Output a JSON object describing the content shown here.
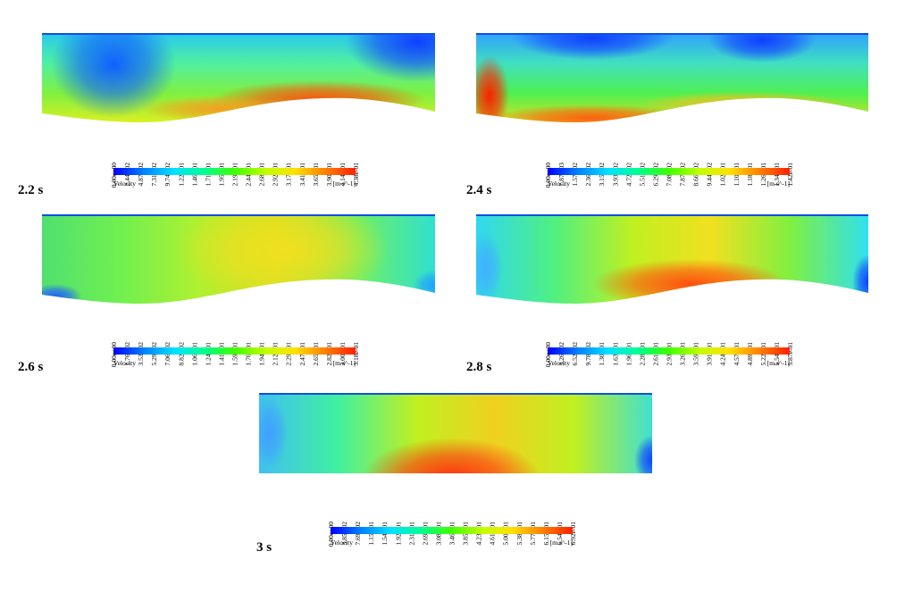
{
  "panels": [
    {
      "time": "2.2  s",
      "legend": {
        "title": "Velocity",
        "unit": "[m s^-1]",
        "ticks": [
          "0.00e+00",
          "2.44e-02",
          "4.87e-02",
          "7.31e-02",
          "9.74e-02",
          "1.22e-01",
          "1.46e-01",
          "1.71e-01",
          "1.95e-01",
          "2.19e-01",
          "2.44e-01",
          "2.68e-01",
          "2.92e-01",
          "3.17e-01",
          "3.41e-01",
          "3.65e-01",
          "3.90e-01",
          "4.14e-01",
          "4.38e-01"
        ]
      }
    },
    {
      "time": "2.4  s",
      "legend": {
        "title": "Velocity",
        "unit": "[m s^-1]",
        "ticks": [
          "0.00e+00",
          "7.87e-03",
          "1.57e-02",
          "2.36e-02",
          "3.15e-02",
          "3.93e-02",
          "4.72e-02",
          "5.51e-02",
          "6.29e-02",
          "7.08e-02",
          "7.87e-02",
          "8.66e-02",
          "9.44e-02",
          "1.02e-01",
          "1.10e-01",
          "1.18e-01",
          "1.26e-01",
          "1.34e-01",
          "1.42e-01"
        ]
      }
    },
    {
      "time": "2.6  s",
      "legend": {
        "title": "Velocity",
        "unit": "[m s^-1]",
        "ticks": [
          "0.00e+00",
          "1.76e-02",
          "3.53e-02",
          "5.29e-02",
          "7.06e-02",
          "8.82e-02",
          "1.06e-01",
          "1.24e-01",
          "1.41e-01",
          "1.59e-01",
          "1.76e-01",
          "1.94e-01",
          "2.12e-01",
          "2.29e-01",
          "2.47e-01",
          "2.65e-01",
          "2.82e-01",
          "3.00e-01",
          "3.18e-01"
        ]
      }
    },
    {
      "time": "2.8  s",
      "legend": {
        "title": "Velocity",
        "unit": "[m s^-1]",
        "ticks": [
          "0.00e+00",
          "3.26e-02",
          "6.52e-02",
          "9.78e-02",
          "1.30e-01",
          "1.63e-01",
          "1.96e-01",
          "2.28e-01",
          "2.61e-01",
          "2.93e-01",
          "3.26e-01",
          "3.59e-01",
          "3.91e-01",
          "4.24e-01",
          "4.57e-01",
          "4.89e-01",
          "5.22e-01",
          "5.54e-01",
          "5.87e-01"
        ]
      }
    },
    {
      "time": "3  s",
      "legend": {
        "title": "Velocity",
        "unit": "[m s^-1]",
        "ticks": [
          "0.00e+00",
          "3.85e-02",
          "7.69e-02",
          "1.15e-01",
          "1.54e-01",
          "1.92e-01",
          "2.31e-01",
          "2.69e-01",
          "3.08e-01",
          "3.46e-01",
          "3.85e-01",
          "4.23e-01",
          "4.61e-01",
          "5.00e-01",
          "5.38e-01",
          "5.77e-01",
          "6.15e-01",
          "6.54e-01",
          "6.92e-01"
        ]
      }
    }
  ]
}
